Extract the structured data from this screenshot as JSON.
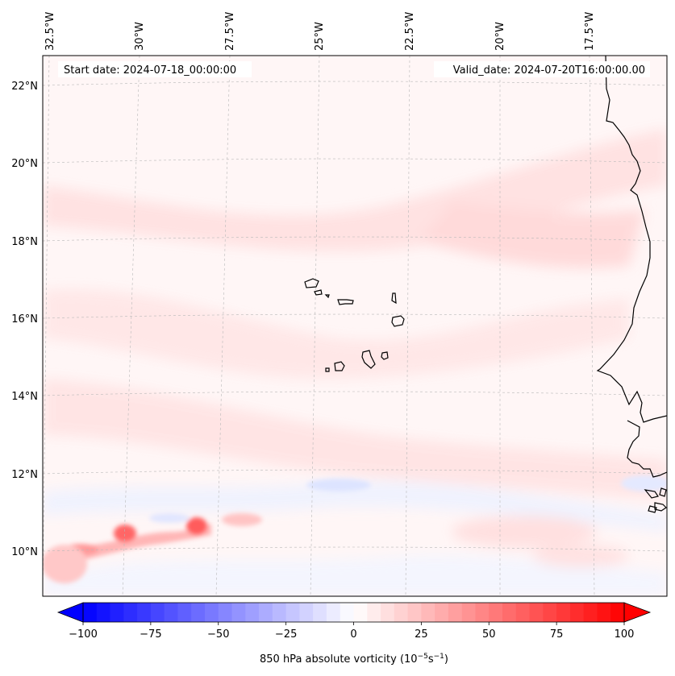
{
  "map": {
    "start_label": "Start date: 2024-07-18_00:00:00",
    "valid_label": "Valid_date: 2024-07-20T16:00:00.00",
    "lon_labels": [
      "32.5°W",
      "30°W",
      "27.5°W",
      "25°W",
      "22.5°W",
      "20°W",
      "17.5°W"
    ],
    "lat_labels": [
      "22°N",
      "20°N",
      "18°N",
      "16°N",
      "14°N",
      "12°N",
      "10°N"
    ],
    "colorbar": {
      "ticks": [
        "−100",
        "−75",
        "−50",
        "−25",
        "0",
        "25",
        "50",
        "75",
        "100"
      ],
      "min": -100,
      "max": 100,
      "step": 5,
      "label_main": "850 hPa absolute vorticity (10",
      "label_exp1": "−5",
      "label_mid": "s",
      "label_exp2": "−1",
      "label_end": ")"
    },
    "colors": {
      "negative": "#0000ff",
      "neutral": "#ffffff",
      "positive": "#ff0000",
      "coastline": "#000000"
    }
  }
}
